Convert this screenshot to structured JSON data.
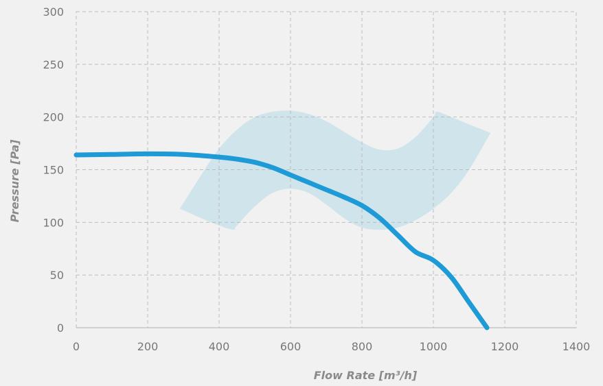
{
  "chart_data": {
    "type": "line",
    "title": "",
    "xlabel": "Flow Rate [m³/h]",
    "ylabel": "Pressure [Pa]",
    "xlim": [
      0,
      1400
    ],
    "ylim": [
      0,
      300
    ],
    "x_ticks": [
      0,
      200,
      400,
      600,
      800,
      1000,
      1200,
      1400
    ],
    "y_ticks": [
      0,
      50,
      100,
      150,
      200,
      250,
      300
    ],
    "grid": true,
    "colors": {
      "curve": "#1e9ad6",
      "band": "#c9e2ea",
      "grid": "#bdbdbd",
      "text": "#777777"
    },
    "series": [
      {
        "type": "line",
        "x": [
          0,
          100,
          200,
          300,
          400,
          450,
          500,
          550,
          600,
          650,
          700,
          750,
          800,
          850,
          900,
          950,
          1000,
          1050,
          1100,
          1150
        ],
        "y": [
          164,
          164.5,
          165,
          164.5,
          162,
          160,
          157,
          152,
          145,
          138,
          131,
          124,
          116,
          104,
          88,
          72,
          64,
          48,
          24,
          0
        ]
      },
      {
        "type": "band",
        "x_upper": [
          290,
          350,
          400,
          450,
          500,
          550,
          600,
          650,
          700,
          750,
          800,
          850,
          900,
          950,
          1000,
          1010,
          1050,
          1100,
          1160
        ],
        "y_upper": [
          113,
          145,
          170,
          188,
          200,
          205,
          206,
          203,
          196,
          186,
          176,
          169,
          170,
          181,
          200,
          205,
          200,
          193,
          185
        ],
        "x_lower": [
          290,
          350,
          400,
          440,
          450,
          500,
          550,
          600,
          650,
          700,
          750,
          800,
          850,
          900,
          950,
          1000,
          1050,
          1100,
          1160
        ],
        "y_lower": [
          113,
          104,
          97,
          93,
          97,
          115,
          128,
          132,
          128,
          117,
          104,
          95,
          93,
          95,
          102,
          113,
          128,
          150,
          185
        ]
      }
    ]
  }
}
